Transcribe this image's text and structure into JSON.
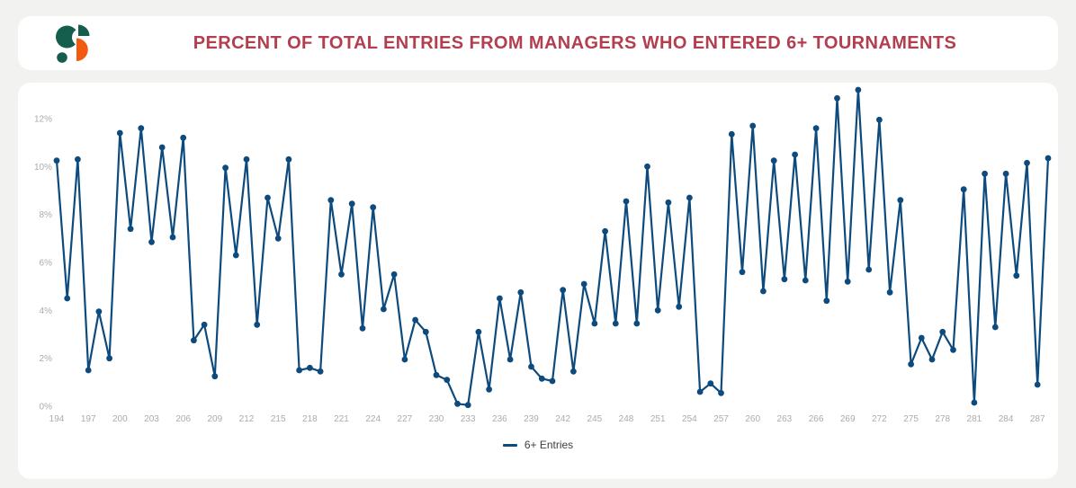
{
  "header": {
    "title": "PERCENT OF TOTAL ENTRIES FROM MANAGERS WHO ENTERED 6+ TOURNAMENTS",
    "logo_colors": {
      "teal": "#155e4e",
      "orange": "#f25a11"
    }
  },
  "colors": {
    "page_background": "#f2f2f0",
    "card_background": "#ffffff",
    "title_text": "#b23f4f",
    "axis_labels": "#ababab",
    "line": "#0d4a7d"
  },
  "chart_data": {
    "type": "line",
    "title": "Percent of total entries from managers who entered 6+ tournaments",
    "xlabel": "",
    "ylabel": "",
    "x_range": [
      194,
      288
    ],
    "x_step": 1,
    "x_ticks": [
      194,
      197,
      200,
      203,
      206,
      209,
      212,
      215,
      218,
      221,
      224,
      227,
      230,
      233,
      236,
      239,
      242,
      245,
      248,
      251,
      254,
      257,
      260,
      263,
      266,
      269,
      272,
      275,
      278,
      281,
      284,
      287
    ],
    "y_ticks": [
      0,
      2,
      4,
      6,
      8,
      10,
      12
    ],
    "y_tick_suffix": "%",
    "ylim": [
      0,
      13.5
    ],
    "grid": false,
    "marker": "circle",
    "legend_position": "bottom-center",
    "series": [
      {
        "name": "6+ Entries",
        "color": "#0d4a7d",
        "values": [
          10.25,
          4.5,
          10.3,
          1.5,
          3.95,
          2.0,
          11.4,
          7.4,
          11.6,
          6.85,
          10.8,
          7.05,
          11.2,
          2.75,
          3.4,
          1.25,
          9.95,
          6.3,
          10.3,
          3.4,
          8.7,
          7.0,
          10.3,
          1.5,
          1.6,
          1.45,
          8.6,
          5.5,
          8.45,
          3.25,
          8.3,
          4.05,
          5.5,
          1.95,
          3.6,
          3.1,
          1.3,
          1.1,
          0.1,
          0.05,
          3.1,
          0.7,
          4.5,
          1.95,
          4.75,
          1.65,
          1.15,
          1.05,
          4.85,
          1.45,
          5.1,
          3.45,
          7.3,
          3.45,
          8.55,
          3.45,
          10.0,
          4.0,
          8.5,
          4.15,
          8.7,
          0.6,
          0.95,
          0.55,
          11.35,
          5.6,
          11.7,
          4.8,
          10.25,
          5.3,
          10.5,
          5.25,
          11.6,
          4.4,
          12.85,
          5.2,
          13.2,
          5.7,
          11.95,
          4.75,
          8.6,
          1.75,
          2.85,
          1.95,
          3.1,
          2.35,
          9.05,
          0.15,
          9.7,
          3.3,
          9.7,
          5.45,
          10.15,
          0.9,
          10.35
        ]
      }
    ]
  }
}
